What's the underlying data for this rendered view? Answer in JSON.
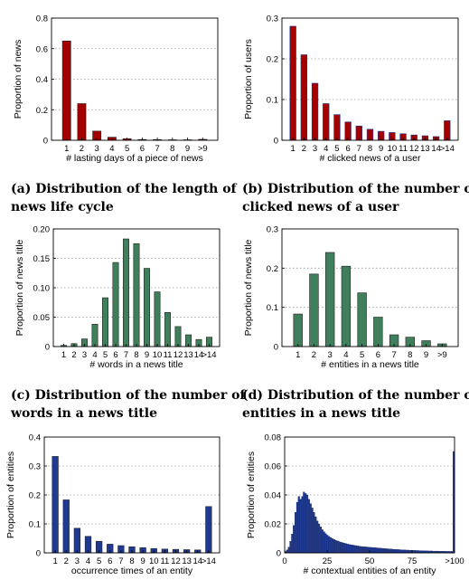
{
  "captions": [
    {
      "line1": "(a) Distribution of the length of",
      "line2": "news life cycle"
    },
    {
      "line1": "(b) Distribution of the number of",
      "line2": "clicked news of a user"
    },
    {
      "line1": "(c) Distribution of the number of",
      "line2": "words in a news title"
    },
    {
      "line1": "(d) Distribution of the number of",
      "line2": "entities in a news title"
    }
  ],
  "chart_data": [
    {
      "type": "bar",
      "color": "#a40000",
      "categories": [
        "1",
        "2",
        "3",
        "4",
        "5",
        "6",
        "7",
        "8",
        "9",
        ">9"
      ],
      "values": [
        0.65,
        0.24,
        0.06,
        0.02,
        0.01,
        0.005,
        0.004,
        0.003,
        0.003,
        0.006
      ],
      "xlabel": "# lasting days of a piece of news",
      "ylabel": "Proportion of news",
      "ylim": [
        0,
        0.8
      ],
      "yticks": [
        "0",
        "0.2",
        "0.4",
        "0.6",
        "0.8"
      ],
      "grid": true
    },
    {
      "type": "bar",
      "color": "#a40000",
      "edge": "#1f3a93",
      "categories": [
        "1",
        "2",
        "3",
        "4",
        "5",
        "6",
        "7",
        "8",
        "9",
        "10",
        "11",
        "12",
        "13",
        "14",
        ">14"
      ],
      "values": [
        0.28,
        0.21,
        0.14,
        0.09,
        0.063,
        0.045,
        0.035,
        0.027,
        0.022,
        0.019,
        0.016,
        0.013,
        0.011,
        0.009,
        0.048
      ],
      "xlabel": "# clicked news of a user",
      "ylabel": "Proportion of users",
      "ylim": [
        0,
        0.3
      ],
      "yticks": [
        "0",
        "0.1",
        "0.2",
        "0.3"
      ],
      "grid": true
    },
    {
      "type": "bar",
      "color": "#3f7f5b",
      "categories": [
        "1",
        "2",
        "3",
        "4",
        "5",
        "6",
        "7",
        "8",
        "9",
        "10",
        "11",
        "12",
        "13",
        "14",
        ">14"
      ],
      "values": [
        0.002,
        0.005,
        0.013,
        0.038,
        0.083,
        0.143,
        0.183,
        0.175,
        0.133,
        0.093,
        0.058,
        0.034,
        0.02,
        0.012,
        0.016
      ],
      "xlabel": "# words in a news title",
      "ylabel": "Proportion of news title",
      "ylim": [
        0,
        0.2
      ],
      "yticks": [
        "0",
        "0.05",
        "0.10",
        "0.15",
        "0.20"
      ],
      "grid": true
    },
    {
      "type": "bar",
      "color": "#3f7f5b",
      "categories": [
        "1",
        "2",
        "3",
        "4",
        "5",
        "6",
        "7",
        "8",
        "9",
        ">9"
      ],
      "values": [
        0.083,
        0.185,
        0.24,
        0.205,
        0.137,
        0.075,
        0.03,
        0.024,
        0.015,
        0.007
      ],
      "xlabel": "# entities in a news title",
      "ylabel": "Proportion of news title",
      "ylim": [
        0,
        0.3
      ],
      "yticks": [
        "0",
        "0.1",
        "0.2",
        "0.3"
      ],
      "grid": true
    },
    {
      "type": "bar",
      "color": "#1f3a93",
      "categories": [
        "1",
        "2",
        "3",
        "4",
        "5",
        "6",
        "7",
        "8",
        "9",
        "10",
        "11",
        "12",
        "13",
        "14",
        ">14"
      ],
      "values": [
        0.333,
        0.183,
        0.085,
        0.057,
        0.04,
        0.03,
        0.025,
        0.021,
        0.018,
        0.015,
        0.013,
        0.012,
        0.011,
        0.01,
        0.16
      ],
      "xlabel": "occurrence times of an entity",
      "ylabel": "Proportion of entities",
      "ylim": [
        0,
        0.4
      ],
      "yticks": [
        "0",
        "0.1",
        "0.2",
        "0.3",
        "0.4"
      ],
      "grid": true
    },
    {
      "type": "bar",
      "color": "#1f3a93",
      "x": [
        1,
        2,
        3,
        4,
        5,
        6,
        7,
        8,
        9,
        10,
        11,
        12,
        13,
        14,
        15,
        16,
        17,
        18,
        19,
        20,
        21,
        22,
        23,
        24,
        25,
        26,
        27,
        28,
        29,
        30,
        31,
        32,
        33,
        34,
        35,
        36,
        37,
        38,
        39,
        40,
        41,
        42,
        43,
        44,
        45,
        46,
        47,
        48,
        49,
        50,
        51,
        52,
        53,
        54,
        55,
        56,
        57,
        58,
        59,
        60,
        61,
        62,
        63,
        64,
        65,
        66,
        67,
        68,
        69,
        70,
        71,
        72,
        73,
        74,
        75,
        76,
        77,
        78,
        79,
        80,
        81,
        82,
        83,
        84,
        85,
        86,
        87,
        88,
        89,
        90,
        91,
        92,
        93,
        94,
        95,
        96,
        97,
        98,
        99,
        100,
        101
      ],
      "values": [
        0.001,
        0.002,
        0.004,
        0.008,
        0.013,
        0.019,
        0.028,
        0.035,
        0.039,
        0.037,
        0.039,
        0.042,
        0.041,
        0.04,
        0.037,
        0.034,
        0.031,
        0.028,
        0.025,
        0.022,
        0.02,
        0.018,
        0.016,
        0.0145,
        0.0133,
        0.0122,
        0.0113,
        0.0105,
        0.0098,
        0.0092,
        0.0087,
        0.0082,
        0.0078,
        0.0074,
        0.007,
        0.0067,
        0.0064,
        0.0061,
        0.0058,
        0.0056,
        0.0054,
        0.0052,
        0.005,
        0.0048,
        0.0046,
        0.0044,
        0.0043,
        0.0042,
        0.0041,
        0.004,
        0.0039,
        0.0038,
        0.0037,
        0.0036,
        0.0035,
        0.0034,
        0.0033,
        0.0032,
        0.0031,
        0.003,
        0.0029,
        0.0028,
        0.0027,
        0.0026,
        0.0025,
        0.0024,
        0.0023,
        0.0023,
        0.0022,
        0.0021,
        0.002,
        0.002,
        0.0019,
        0.0019,
        0.0018,
        0.0018,
        0.0017,
        0.0017,
        0.0016,
        0.0016,
        0.0015,
        0.0015,
        0.0014,
        0.0014,
        0.0014,
        0.0013,
        0.0013,
        0.0013,
        0.0012,
        0.0012,
        0.0012,
        0.0012,
        0.0011,
        0.0011,
        0.0011,
        0.0011,
        0.001,
        0.001,
        0.001,
        0.001,
        0.07
      ],
      "xticks": [
        "0",
        "25",
        "50",
        "75",
        ">100"
      ],
      "xlabel": "# contextual entities of an entity",
      "ylabel": "Proportion of entities",
      "ylim": [
        0,
        0.08
      ],
      "yticks": [
        "0",
        "0.02",
        "0.04",
        "0.06",
        "0.08"
      ],
      "grid": true
    }
  ]
}
